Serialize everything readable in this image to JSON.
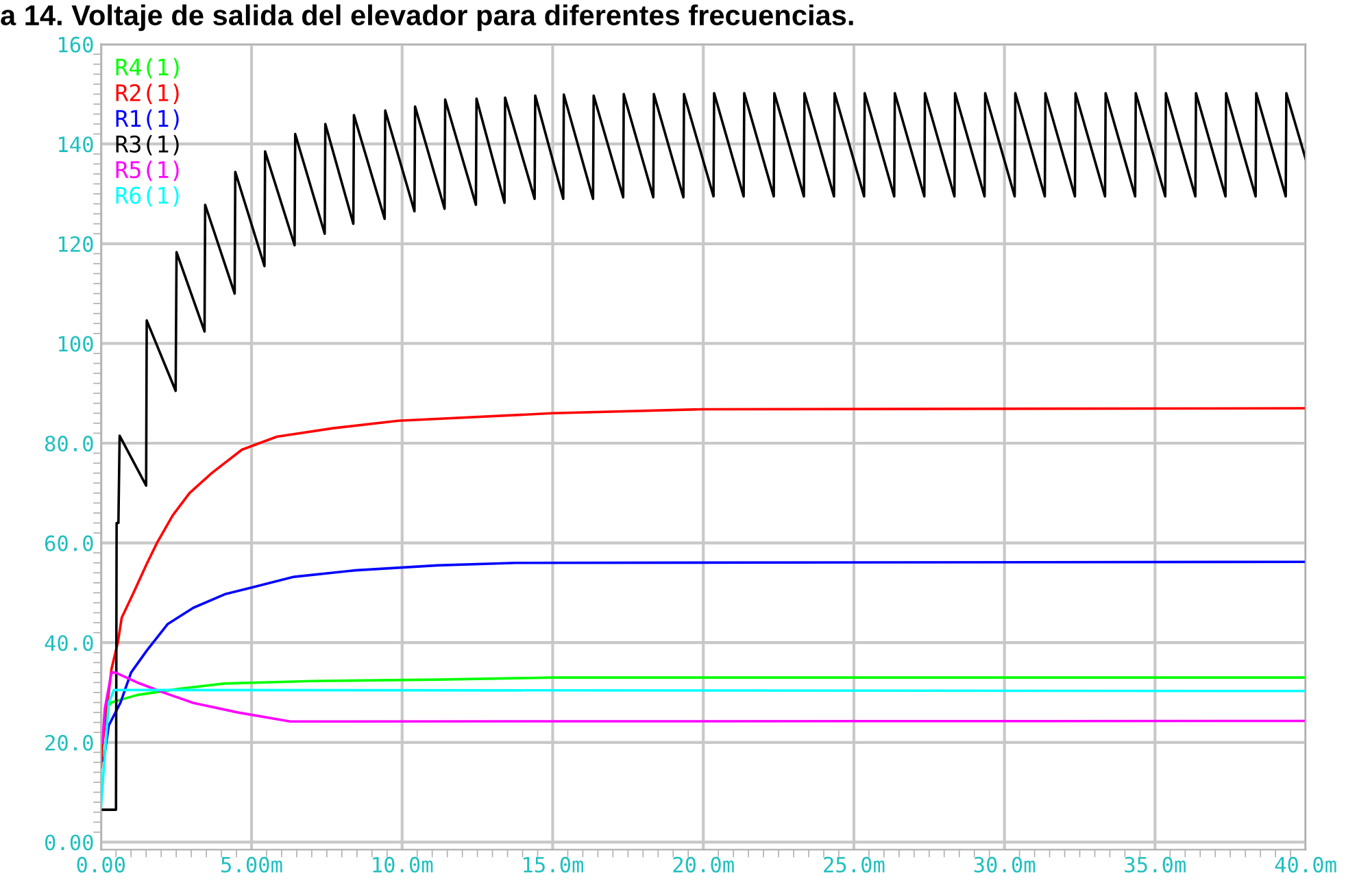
{
  "chart_data": {
    "type": "line",
    "title": "a 14. Voltaje de salida del elevador para diferentes frecuencias.",
    "xlim": [
      0,
      40
    ],
    "ylim": [
      -1.5,
      160
    ],
    "xticks": [
      {
        "value": 0,
        "label": "0.00"
      },
      {
        "value": 5,
        "label": "5.00m"
      },
      {
        "value": 10,
        "label": "10.0m"
      },
      {
        "value": 15,
        "label": "15.0m"
      },
      {
        "value": 20,
        "label": "20.0m"
      },
      {
        "value": 25,
        "label": "25.0m"
      },
      {
        "value": 30,
        "label": "30.0m"
      },
      {
        "value": 35,
        "label": "35.0m"
      },
      {
        "value": 40,
        "label": "40.0m"
      }
    ],
    "yticks": [
      {
        "value": 0,
        "label": "0.00"
      },
      {
        "value": 20,
        "label": "20.0"
      },
      {
        "value": 40,
        "label": "40.0"
      },
      {
        "value": 60,
        "label": "60.0"
      },
      {
        "value": 80,
        "label": "80.0"
      },
      100,
      120,
      140,
      160
    ],
    "grid": true,
    "legend": "top left",
    "marker": "none",
    "line_style": "solid",
    "series": [
      {
        "name": "R4(1)",
        "color": "#00ff00",
        "x": [
          0.2,
          0.35,
          1.2,
          2.65,
          4.1,
          7,
          11.2,
          15,
          40
        ],
        "values": [
          27,
          28,
          29.5,
          30.8,
          31.8,
          32.3,
          32.6,
          33,
          33
        ]
      },
      {
        "name": "R2(1)",
        "color": "#ff0000",
        "x": [
          0,
          0.04,
          0.35,
          0.56,
          0.69,
          1.08,
          1.52,
          1.86,
          2.38,
          2.94,
          3.68,
          4.68,
          5.84,
          7.71,
          9.87,
          14.98,
          19.96,
          40
        ],
        "values": [
          15,
          19,
          34.7,
          40,
          45,
          50,
          55.8,
          60,
          65.5,
          70,
          74,
          78.7,
          81.3,
          83,
          84.5,
          86,
          86.8,
          87
        ]
      },
      {
        "name": "R1(1)",
        "color": "#0000ff",
        "x": [
          0.09,
          0.26,
          0.65,
          1.0,
          1.52,
          2.21,
          3.07,
          4.11,
          4.98,
          6.41,
          8.44,
          11.17,
          13.77,
          40
        ],
        "values": [
          16.3,
          23.4,
          28,
          34,
          38.4,
          43.7,
          47,
          49.7,
          51,
          53.2,
          54.5,
          55.5,
          56,
          56.2
        ]
      },
      {
        "name": "R3(1)",
        "color": "#000000",
        "x": [
          0,
          0.5,
          0.52,
          0.58,
          0.62,
          1.5,
          1.52,
          2.48,
          2.51,
          3.44,
          3.46,
          4.44,
          4.46,
          5.43,
          5.45,
          6.43,
          6.45,
          7.43,
          7.45,
          8.38,
          8.4,
          9.42,
          9.44,
          10.41,
          10.43,
          11.41,
          11.43,
          12.45,
          12.47,
          13.4,
          13.42,
          14.4,
          14.42,
          15.35,
          15.37,
          16.34,
          16.36,
          17.34,
          17.36,
          18.34,
          18.36,
          19.34,
          19.36,
          20.34,
          20.36,
          21.34,
          21.36,
          22.34,
          22.36,
          23.34,
          23.36,
          24.34,
          24.36,
          25.34,
          25.36,
          26.34,
          26.36,
          27.34,
          27.36,
          28.34,
          28.36,
          29.34,
          29.36,
          30.34,
          30.36,
          31.34,
          31.36,
          32.34,
          32.36,
          33.34,
          33.36,
          34.34,
          34.36,
          35.34,
          35.36,
          36.34,
          36.36,
          37.34,
          37.36,
          38.34,
          38.36,
          39.34,
          39.36,
          40
        ],
        "values": [
          6.5,
          6.5,
          64,
          64,
          81.5,
          71.5,
          104.6,
          90.5,
          118.3,
          102.4,
          127.8,
          110,
          134.4,
          115.5,
          138.5,
          119.7,
          142,
          122,
          144,
          124,
          145.8,
          125,
          146.7,
          126.5,
          147.5,
          127,
          148.9,
          127.8,
          149.1,
          128.2,
          149.3,
          129,
          149.7,
          129,
          149.9,
          129,
          149.7,
          129.3,
          150,
          129.3,
          150,
          129.3,
          150,
          129.5,
          150.2,
          129.5,
          150.2,
          129.5,
          150.2,
          129.5,
          150.2,
          129.5,
          150.2,
          129.5,
          150.2,
          129.5,
          150.2,
          129.5,
          150.2,
          129.5,
          150.2,
          129.5,
          150.2,
          129.5,
          150.2,
          129.5,
          150.2,
          129.5,
          150.2,
          129.5,
          150.2,
          129.5,
          150.2,
          129.5,
          150.2,
          129.5,
          150.2,
          129.5,
          150.2,
          129.5,
          150.2,
          129.5,
          150.2,
          137
        ]
      },
      {
        "name": "R5(1)",
        "color": "#ff00ff",
        "x": [
          0.05,
          0.13,
          0.35,
          0.48,
          1.21,
          2.08,
          3.07,
          4.55,
          6.28,
          40
        ],
        "values": [
          20,
          26.8,
          34,
          34,
          32,
          30,
          27.9,
          26,
          24.2,
          24.3
        ]
      },
      {
        "name": "R6(1)",
        "color": "#00ffff",
        "x": [
          0,
          0.26,
          0.43,
          2,
          40
        ],
        "values": [
          7,
          28,
          30.5,
          30.5,
          30.3
        ]
      }
    ]
  }
}
